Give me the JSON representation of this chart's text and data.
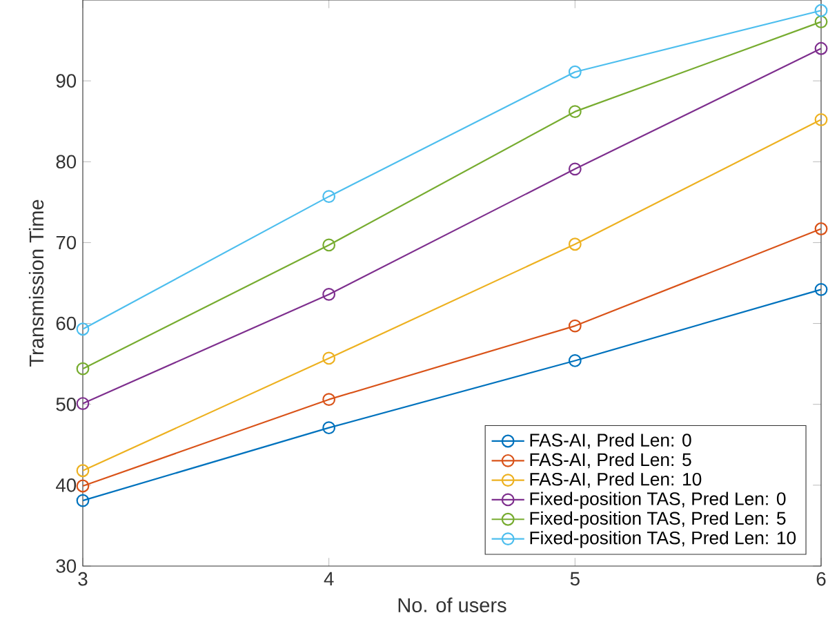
{
  "chart_data": {
    "type": "line",
    "xlabel": "No. of users",
    "ylabel": "Transmission Time",
    "x": [
      3,
      4,
      5,
      6
    ],
    "xlim": [
      3,
      6
    ],
    "xticks": [
      3,
      4,
      5,
      6
    ],
    "ylim": [
      30,
      100
    ],
    "yticks": [
      30,
      40,
      50,
      60,
      70,
      80,
      90
    ],
    "marker": "circle",
    "legend": "bottom right",
    "grid": false,
    "series": [
      {
        "name": "FAS-AI, Pred Len: 0",
        "color": "#0072bd",
        "values": [
          38.1,
          47.1,
          55.4,
          64.2
        ]
      },
      {
        "name": "FAS-AI, Pred Len: 5",
        "color": "#d95319",
        "values": [
          39.9,
          50.6,
          59.7,
          71.7
        ]
      },
      {
        "name": "FAS-AI, Pred Len: 10",
        "color": "#edb120",
        "values": [
          41.8,
          55.7,
          69.8,
          85.2
        ]
      },
      {
        "name": "Fixed-position TAS, Pred Len: 0",
        "color": "#7e2f8e",
        "values": [
          50.1,
          63.6,
          79.1,
          94.0
        ]
      },
      {
        "name": "Fixed-position TAS, Pred Len: 5",
        "color": "#77ac30",
        "values": [
          54.4,
          69.7,
          86.2,
          97.3
        ]
      },
      {
        "name": "Fixed-position TAS, Pred Len: 10",
        "color": "#4dbeee",
        "values": [
          59.3,
          75.7,
          91.1,
          98.7
        ]
      }
    ]
  }
}
